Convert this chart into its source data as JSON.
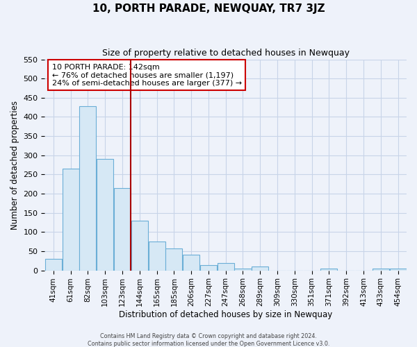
{
  "title": "10, PORTH PARADE, NEWQUAY, TR7 3JZ",
  "subtitle": "Size of property relative to detached houses in Newquay",
  "xlabel": "Distribution of detached houses by size in Newquay",
  "ylabel": "Number of detached properties",
  "bar_labels": [
    "41sqm",
    "61sqm",
    "82sqm",
    "103sqm",
    "123sqm",
    "144sqm",
    "165sqm",
    "185sqm",
    "206sqm",
    "227sqm",
    "247sqm",
    "268sqm",
    "289sqm",
    "309sqm",
    "330sqm",
    "351sqm",
    "371sqm",
    "392sqm",
    "413sqm",
    "433sqm",
    "454sqm"
  ],
  "bar_values": [
    30,
    265,
    428,
    291,
    214,
    130,
    75,
    58,
    40,
    14,
    20,
    5,
    10,
    0,
    0,
    0,
    5,
    0,
    0,
    5,
    5
  ],
  "bar_color": "#d6e8f5",
  "bar_edge_color": "#6aaed6",
  "vline_x": 4.5,
  "vline_color": "#aa0000",
  "annotation_title": "10 PORTH PARADE: 142sqm",
  "annotation_line1": "← 76% of detached houses are smaller (1,197)",
  "annotation_line2": "24% of semi-detached houses are larger (377) →",
  "annotation_box_color": "#ffffff",
  "annotation_box_edge": "#cc0000",
  "ylim": [
    0,
    550
  ],
  "yticks": [
    0,
    50,
    100,
    150,
    200,
    250,
    300,
    350,
    400,
    450,
    500,
    550
  ],
  "footer1": "Contains HM Land Registry data © Crown copyright and database right 2024.",
  "footer2": "Contains public sector information licensed under the Open Government Licence v3.0.",
  "bg_color": "#eef2fa",
  "grid_color": "#c8d4e8"
}
